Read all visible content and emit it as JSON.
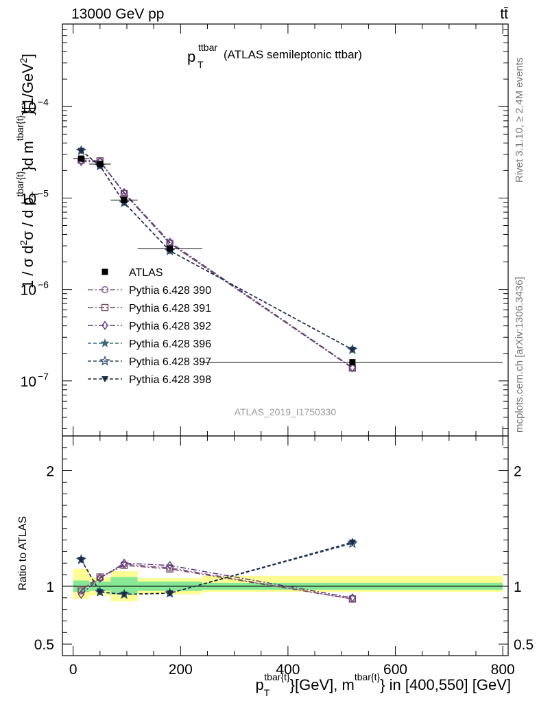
{
  "header": {
    "energy_label": "13000 GeV pp",
    "process_label": "tt̄"
  },
  "side_labels": {
    "rivet": "Rivet 3.1.10, ≥ 2.4M events",
    "mcplots": "mcplots.cern.ch [arXiv:1306.3436]"
  },
  "chart_data": [
    {
      "type": "line",
      "title": "p_T^ttbar (ATLAS semileptonic ttbar)",
      "title_main": "p",
      "title_sub": "T",
      "title_sup": "ttbar",
      "title_rest": "(ATLAS semileptonic ttbar)",
      "analysis_id": "ATLAS_2019_I1750330",
      "ylabel": "1 / σ d²σ / d p_T^{tbar{t}} d m^{tbar{t}} [1/GeV²]",
      "xlabel": "p_T^{tbar{t}} [GeV], m^{tbar{t}} in [400,550] [GeV]",
      "xlim": [
        -20,
        810
      ],
      "ylim": [
        2.5e-08,
        0.0008
      ],
      "log_y": true,
      "y_ticks": [
        "10^-7",
        "10^-6",
        "10^-5",
        "10^-4"
      ],
      "x": [
        15,
        50,
        95,
        180,
        520
      ],
      "x_edges": [
        [
          0,
          30
        ],
        [
          30,
          70
        ],
        [
          70,
          120
        ],
        [
          120,
          240
        ],
        [
          240,
          800
        ]
      ],
      "data": {
        "name": "ATLAS",
        "values": [
          2.7e-05,
          2.35e-05,
          9.5e-06,
          2.8e-06,
          1.6e-07
        ]
      },
      "series": [
        {
          "name": "Pythia 6.428 390",
          "color": "#8a5a8f",
          "marker": "circle-open",
          "dash": "8,3,2,3",
          "values": [
            2.6e-05,
            2.5e-05,
            1.13e-05,
            3.2e-06,
            1.38e-07
          ]
        },
        {
          "name": "Pythia 6.428 391",
          "color": "#7a4a5a",
          "marker": "square-open",
          "dash": "8,3,2,3",
          "values": [
            2.6e-05,
            2.55e-05,
            1.12e-05,
            3.2e-06,
            1.38e-07
          ]
        },
        {
          "name": "Pythia 6.428 392",
          "color": "#5a3a8a",
          "marker": "diamond-open",
          "dash": "8,3,2,3",
          "values": [
            2.5e-05,
            2.5e-05,
            1.15e-05,
            3.3e-06,
            1.4e-07
          ]
        },
        {
          "name": "Pythia 6.428 396",
          "color": "#3a6a7a",
          "marker": "star-filled",
          "dash": "5,3",
          "values": [
            3.3e-05,
            2.25e-05,
            8.9e-06,
            2.65e-06,
            2.2e-07
          ]
        },
        {
          "name": "Pythia 6.428 397",
          "color": "#2a4a6a",
          "marker": "star-open",
          "dash": "5,3",
          "values": [
            3.3e-05,
            2.25e-05,
            8.9e-06,
            2.65e-06,
            2.2e-07
          ]
        },
        {
          "name": "Pythia 6.428 398",
          "color": "#1a2a4a",
          "marker": "triangle-down-filled",
          "dash": "5,3",
          "values": [
            3.3e-05,
            2.25e-05,
            8.9e-06,
            2.65e-06,
            2.2e-07
          ]
        }
      ]
    },
    {
      "type": "line",
      "ylabel": "Ratio to ATLAS",
      "ylim": [
        0.4,
        2.3
      ],
      "y_ticks_left": [
        {
          "v": 0.5,
          "label": "0.5"
        },
        {
          "v": 1,
          "label": "1"
        },
        {
          "v": 2,
          "label": "2"
        }
      ],
      "x_ticks": [
        {
          "v": 0,
          "label": "0"
        },
        {
          "v": 200,
          "label": "200"
        },
        {
          "v": 400,
          "label": "400"
        },
        {
          "v": 600,
          "label": "600"
        },
        {
          "v": 800,
          "label": "800"
        }
      ],
      "bands": {
        "stat_color": "#86e896",
        "total_color": "#fdfd94",
        "stat": [
          [
            0.95,
            1.05
          ],
          [
            0.96,
            1.04
          ],
          [
            0.93,
            1.08
          ],
          [
            0.96,
            1.04
          ],
          [
            0.97,
            1.03
          ]
        ],
        "total": [
          [
            0.89,
            1.15
          ],
          [
            0.92,
            1.08
          ],
          [
            0.87,
            1.13
          ],
          [
            0.93,
            1.07
          ],
          [
            0.95,
            1.09
          ]
        ]
      },
      "x": [
        15,
        50,
        95,
        180,
        520
      ],
      "series": [
        {
          "name": "Pythia 6.428 390",
          "values": [
            0.96,
            1.07,
            1.19,
            1.16,
            0.89
          ]
        },
        {
          "name": "Pythia 6.428 391",
          "values": [
            0.97,
            1.08,
            1.18,
            1.15,
            0.89
          ]
        },
        {
          "name": "Pythia 6.428 392",
          "values": [
            0.93,
            1.07,
            1.2,
            1.18,
            0.9
          ]
        },
        {
          "name": "Pythia 6.428 396",
          "values": [
            1.23,
            0.95,
            0.93,
            0.94,
            1.38
          ]
        },
        {
          "name": "Pythia 6.428 397",
          "values": [
            1.23,
            0.95,
            0.93,
            0.94,
            1.37
          ]
        },
        {
          "name": "Pythia 6.428 398",
          "values": [
            1.23,
            0.95,
            0.93,
            0.94,
            1.38
          ]
        }
      ]
    }
  ]
}
